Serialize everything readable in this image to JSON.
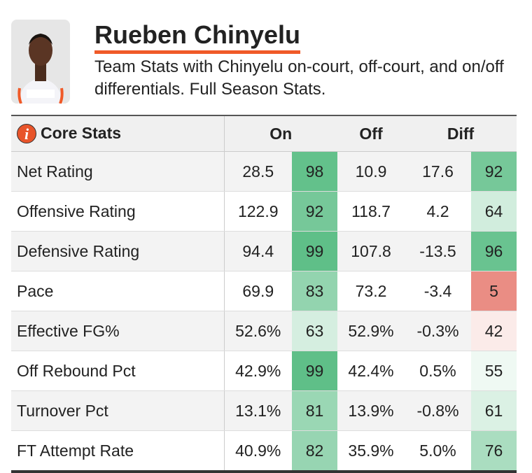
{
  "header": {
    "title": "Rueben Chinyelu",
    "subtitle": "Team Stats with Chinyelu on-court, off-court, and on/off differentials. Full Season Stats.",
    "icon": "i"
  },
  "table": {
    "section": "Core Stats",
    "columns": [
      "On",
      "Off",
      "Diff"
    ],
    "rows": [
      {
        "label": "Net Rating",
        "on": "28.5",
        "on_pct": 98,
        "off": "10.9",
        "diff": "17.6",
        "diff_pct": 92
      },
      {
        "label": "Offensive Rating",
        "on": "122.9",
        "on_pct": 92,
        "off": "118.7",
        "diff": "4.2",
        "diff_pct": 64
      },
      {
        "label": "Defensive Rating",
        "on": "94.4",
        "on_pct": 99,
        "off": "107.8",
        "diff": "-13.5",
        "diff_pct": 96
      },
      {
        "label": "Pace",
        "on": "69.9",
        "on_pct": 83,
        "off": "73.2",
        "diff": "-3.4",
        "diff_pct": 5
      },
      {
        "label": "Effective FG%",
        "on": "52.6%",
        "on_pct": 63,
        "off": "52.9%",
        "diff": "-0.3%",
        "diff_pct": 42
      },
      {
        "label": "Off Rebound Pct",
        "on": "42.9%",
        "on_pct": 99,
        "off": "42.4%",
        "diff": "0.5%",
        "diff_pct": 55
      },
      {
        "label": "Turnover Pct",
        "on": "13.1%",
        "on_pct": 81,
        "off": "13.9%",
        "diff": "-0.8%",
        "diff_pct": 61
      },
      {
        "label": "FT Attempt Rate",
        "on": "40.9%",
        "on_pct": 82,
        "off": "35.9%",
        "diff": "5.0%",
        "diff_pct": 76
      }
    ]
  }
}
